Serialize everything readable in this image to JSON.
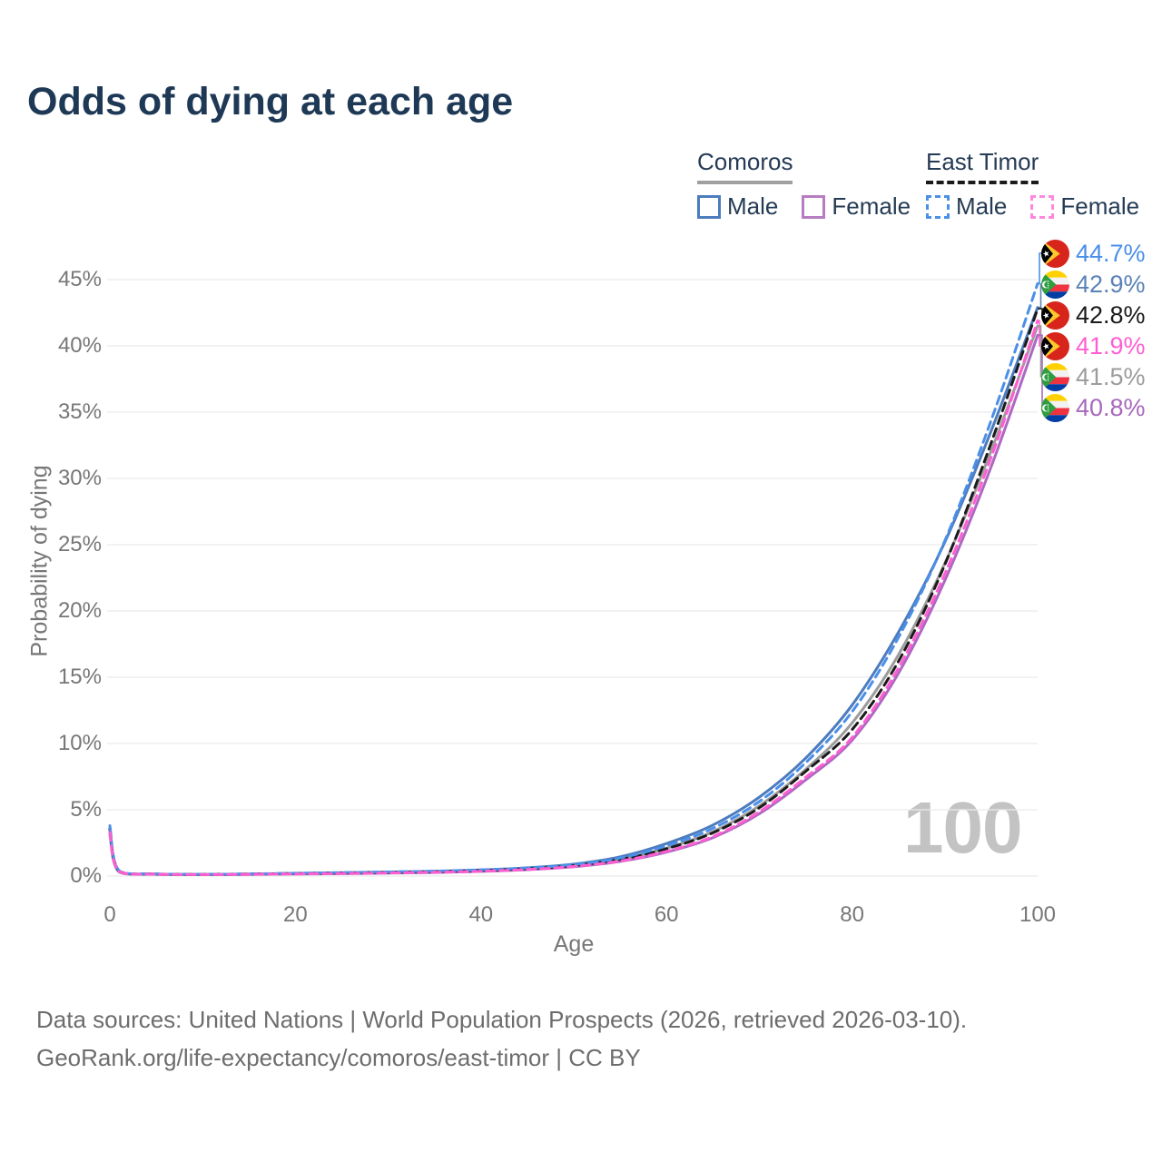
{
  "title": "Odds of dying at each age",
  "legend": {
    "groups": [
      {
        "label": "Comoros",
        "style": "solid",
        "items": [
          {
            "label": "Male"
          },
          {
            "label": "Female"
          }
        ]
      },
      {
        "label": "East Timor",
        "style": "dashed",
        "items": [
          {
            "label": "Male"
          },
          {
            "label": "Female"
          }
        ]
      }
    ]
  },
  "watermark": "100",
  "footer": {
    "line1": "Data sources: United Nations | World Population Prospects (2026, retrieved 2026-03-10).",
    "line2": "GeoRank.org/life-expectancy/comoros/east-timor | CC BY"
  },
  "colors": {
    "title_navy": "#1e3956",
    "axis_gray": "#777777",
    "grid_gray": "#ebebeb",
    "comoros_male": "#4d7cbe",
    "comoros_female": "#ad68c2",
    "comoros_all": "#9c9c9c",
    "east_timor_male": "#4a8fe8",
    "east_timor_female": "#ff5ed2",
    "east_timor_all": "#1b1b1b",
    "watermark_gray": "#c3c3c3"
  },
  "chart_data": {
    "type": "line",
    "title": "Odds of dying at each age",
    "xlabel": "Age",
    "ylabel": "Probability of dying",
    "xlim": [
      0,
      100
    ],
    "ylim_percent": [
      0,
      45
    ],
    "grid": "horizontal-only",
    "legend_position": "top-right",
    "y_ticks": [
      "0%",
      "5%",
      "10%",
      "15%",
      "20%",
      "25%",
      "30%",
      "35%",
      "40%",
      "45%"
    ],
    "x_ticks": [
      "0",
      "20",
      "40",
      "60",
      "80",
      "100"
    ],
    "x": [
      0,
      1,
      5,
      10,
      15,
      20,
      25,
      30,
      35,
      40,
      45,
      50,
      55,
      60,
      65,
      70,
      75,
      80,
      85,
      90,
      95,
      100
    ],
    "series": [
      {
        "name": "Comoros Male",
        "country": "comoros",
        "sex": "male",
        "dash": false,
        "color": "#4d7cbe",
        "values": [
          3.6,
          0.35,
          0.15,
          0.12,
          0.15,
          0.2,
          0.25,
          0.3,
          0.36,
          0.46,
          0.62,
          0.9,
          1.45,
          2.45,
          3.85,
          5.95,
          8.9,
          12.9,
          18.4,
          25.2,
          33.6,
          42.9
        ]
      },
      {
        "name": "Comoros Female",
        "country": "comoros",
        "sex": "female",
        "dash": false,
        "color": "#ad68c2",
        "values": [
          3.1,
          0.3,
          0.13,
          0.1,
          0.12,
          0.15,
          0.18,
          0.22,
          0.27,
          0.35,
          0.48,
          0.7,
          1.1,
          1.8,
          2.9,
          4.7,
          7.25,
          10.25,
          15.3,
          22.3,
          30.9,
          40.8
        ]
      },
      {
        "name": "Comoros",
        "country": "comoros",
        "sex": "all",
        "dash": false,
        "color": "#9c9c9c",
        "values": [
          3.35,
          0.33,
          0.14,
          0.11,
          0.14,
          0.18,
          0.22,
          0.26,
          0.32,
          0.41,
          0.55,
          0.8,
          1.27,
          2.1,
          3.35,
          5.3,
          8.05,
          11.55,
          16.7,
          23.6,
          32.1,
          41.5
        ]
      },
      {
        "name": "East Timor",
        "country": "east-timor",
        "sex": "all",
        "dash": true,
        "color": "#1b1b1b",
        "values": [
          3.55,
          0.38,
          0.15,
          0.12,
          0.15,
          0.19,
          0.23,
          0.27,
          0.33,
          0.42,
          0.55,
          0.79,
          1.26,
          2.06,
          3.26,
          5.15,
          7.9,
          11.05,
          16.2,
          23.5,
          32.7,
          42.8
        ]
      },
      {
        "name": "East Timor Male",
        "country": "east-timor",
        "sex": "male",
        "dash": true,
        "color": "#4a8fe8",
        "values": [
          3.8,
          0.4,
          0.16,
          0.13,
          0.16,
          0.21,
          0.26,
          0.31,
          0.37,
          0.47,
          0.61,
          0.86,
          1.36,
          2.28,
          3.6,
          5.62,
          8.55,
          12.4,
          18.0,
          25.3,
          34.4,
          44.7
        ]
      },
      {
        "name": "East Timor Female",
        "country": "east-timor",
        "sex": "female",
        "dash": true,
        "color": "#ff5ed2",
        "values": [
          3.3,
          0.35,
          0.14,
          0.11,
          0.13,
          0.16,
          0.19,
          0.23,
          0.28,
          0.36,
          0.49,
          0.72,
          1.13,
          1.86,
          2.98,
          4.85,
          7.45,
          10.45,
          15.7,
          22.8,
          31.6,
          41.9
        ]
      }
    ],
    "end_labels": [
      {
        "value": "44.7%",
        "series": "East Timor Male",
        "country": "east-timor",
        "flag": "east-timor-flag-icon",
        "color": "#4a8fe8",
        "line_end_percent": 44.7
      },
      {
        "value": "42.9%",
        "series": "Comoros Male",
        "country": "comoros",
        "flag": "comoros-flag-icon",
        "color": "#5b82b8",
        "line_end_percent": 42.9
      },
      {
        "value": "42.8%",
        "series": "East Timor",
        "country": "east-timor",
        "flag": "east-timor-flag-icon",
        "color": "#1b1b1b",
        "line_end_percent": 42.8
      },
      {
        "value": "41.9%",
        "series": "East Timor Female",
        "country": "east-timor",
        "flag": "east-timor-flag-icon",
        "color": "#ff5ed2",
        "line_end_percent": 41.9
      },
      {
        "value": "41.5%",
        "series": "Comoros",
        "country": "comoros",
        "flag": "comoros-flag-icon",
        "color": "#9c9c9c",
        "line_end_percent": 41.5
      },
      {
        "value": "40.8%",
        "series": "Comoros Female",
        "country": "comoros",
        "flag": "comoros-flag-icon",
        "color": "#a868bd",
        "line_end_percent": 40.8
      }
    ]
  }
}
